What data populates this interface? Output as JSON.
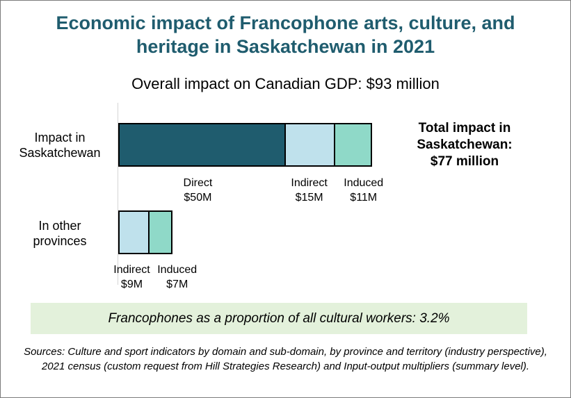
{
  "title_line1": "Economic impact of Francophone arts, culture, and",
  "title_line2": "heritage in Saskatchewan in 2021",
  "overall_impact": "Overall impact on Canadian GDP: $93 million",
  "total_label_line1": "Total impact in",
  "total_label_line2": "Saskatchewan:",
  "total_label_line3": "$77 million",
  "rows": [
    {
      "label_line1": "Impact in",
      "label_line2": "Saskatchewan"
    },
    {
      "label_line1": "In other",
      "label_line2": "provinces"
    }
  ],
  "note": "Francophones as a proportion of all cultural workers: 3.2%",
  "sources": "Sources: Culture and sport indicators by domain and sub-domain, by province and territory (industry perspective), 2021 census (custom request from Hill Strategies Research) and Input-output multipliers (summary level).",
  "chart_data": {
    "type": "bar",
    "orientation": "horizontal",
    "stacked": true,
    "unit": "$M",
    "categories": [
      "Impact in Saskatchewan",
      "In other provinces"
    ],
    "series": [
      {
        "name": "Direct",
        "color": "#1f5c6e",
        "values": [
          50,
          0
        ],
        "labels": [
          "$50M",
          ""
        ]
      },
      {
        "name": "Indirect",
        "color": "#bfe1ec",
        "values": [
          15,
          9
        ],
        "labels": [
          "$15M",
          "$9M"
        ]
      },
      {
        "name": "Induced",
        "color": "#8fd9c8",
        "values": [
          11,
          7
        ],
        "labels": [
          "$11M",
          "$7M"
        ]
      }
    ],
    "xlim": [
      0,
      76
    ],
    "grid": false,
    "legend": "none"
  }
}
